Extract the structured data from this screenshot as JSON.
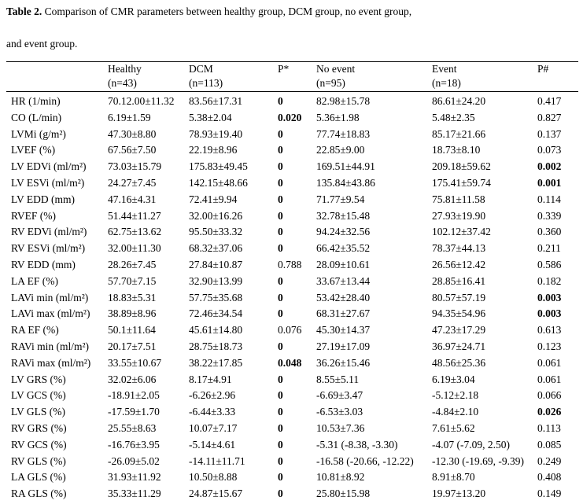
{
  "header": {
    "label": "Table 2.",
    "lines": [
      "Comparison of CMR parameters between healthy group, DCM group, no event group,",
      "and event group."
    ]
  },
  "table": {
    "columns": [
      {
        "name": "Healthy",
        "n": "(n=43)"
      },
      {
        "name": "DCM",
        "n": "(n=113)"
      },
      {
        "name": "P*"
      },
      {
        "name": "No event",
        "n": "(n=95)"
      },
      {
        "name": "Event",
        "n": "(n=18)"
      },
      {
        "name": "P#"
      }
    ],
    "rows": [
      {
        "cells": [
          "HR (1/min)",
          "70.12.00±11.32",
          "83.56±17.31",
          "0",
          "82.98±15.78",
          "86.61±24.20",
          "0.417"
        ],
        "bold": [
          3
        ]
      },
      {
        "cells": [
          "CO (L/min)",
          "6.19±1.59",
          "5.38±2.04",
          "0.020",
          "5.36±1.98",
          "5.48±2.35",
          "0.827"
        ],
        "bold": [
          3
        ]
      },
      {
        "cells": [
          "LVMi (g/m²)",
          "47.30±8.80",
          "78.93±19.40",
          "0",
          "77.74±18.83",
          "85.17±21.66",
          "0.137"
        ],
        "bold": [
          3
        ]
      },
      {
        "cells": [
          "LVEF (%)",
          "67.56±7.50",
          "22.19±8.96",
          "0",
          "22.85±9.00",
          "18.73±8.10",
          "0.073"
        ],
        "bold": [
          3
        ]
      },
      {
        "cells": [
          "LV EDVi (ml/m²)",
          "73.03±15.79",
          "175.83±49.45",
          "0",
          "169.51±44.91",
          "209.18±59.62",
          "0.002"
        ],
        "bold": [
          3,
          6
        ]
      },
      {
        "cells": [
          "LV ESVi (ml/m²)",
          "24.27±7.45",
          "142.15±48.66",
          "0",
          "135.84±43.86",
          "175.41±59.74",
          "0.001"
        ],
        "bold": [
          3,
          6
        ]
      },
      {
        "cells": [
          "LV EDD (mm)",
          "47.16±4.31",
          "72.41±9.94",
          "0",
          "71.77±9.54",
          "75.81±11.58",
          "0.114"
        ],
        "bold": [
          3
        ]
      },
      {
        "cells": [
          "RVEF (%)",
          "51.44±11.27",
          "32.00±16.26",
          "0",
          "32.78±15.48",
          "27.93±19.90",
          "0.339"
        ],
        "bold": [
          3
        ]
      },
      {
        "cells": [
          "RV EDVi (ml/m²)",
          "62.75±13.62",
          "95.50±33.32",
          "0",
          "94.24±32.56",
          "102.12±37.42",
          "0.360"
        ],
        "bold": [
          3
        ]
      },
      {
        "cells": [
          "RV ESVi (ml/m²)",
          "32.00±11.30",
          "68.32±37.06",
          "0",
          "66.42±35.52",
          "78.37±44.13",
          "0.211"
        ],
        "bold": [
          3
        ]
      },
      {
        "cells": [
          "RV EDD (mm)",
          "28.26±7.45",
          "27.84±10.87",
          "0.788",
          "28.09±10.61",
          "26.56±12.42",
          "0.586"
        ],
        "bold": []
      },
      {
        "cells": [
          "LA EF (%)",
          "57.70±7.15",
          "32.90±13.99",
          "0",
          "33.67±13.44",
          "28.85±16.41",
          "0.182"
        ],
        "bold": [
          3
        ]
      },
      {
        "cells": [
          "LAVi min (ml/m²)",
          "18.83±5.31",
          "57.75±35.68",
          "0",
          "53.42±28.40",
          "80.57±57.19",
          "0.003"
        ],
        "bold": [
          3,
          6
        ]
      },
      {
        "cells": [
          "LAVi max (ml/m²)",
          "38.89±8.96",
          "72.46±34.54",
          "0",
          "68.31±27.67",
          "94.35±54.96",
          "0.003"
        ],
        "bold": [
          3,
          6
        ]
      },
      {
        "cells": [
          "RA EF (%)",
          "50.1±11.64",
          "45.61±14.80",
          "0.076",
          "45.30±14.37",
          "47.23±17.29",
          "0.613"
        ],
        "bold": []
      },
      {
        "cells": [
          "RAVi min (ml/m²)",
          "20.17±7.51",
          "28.75±18.73",
          "0",
          "27.19±17.09",
          "36.97±24.71",
          "0.123"
        ],
        "bold": [
          3
        ]
      },
      {
        "cells": [
          "RAVi max (ml/m²)",
          "33.55±10.67",
          "38.22±17.85",
          "0.048",
          "36.26±15.46",
          "48.56±25.36",
          "0.061"
        ],
        "bold": [
          3
        ]
      },
      {
        "cells": [
          "LV GRS (%)",
          "32.02±6.06",
          "8.17±4.91",
          "0",
          "8.55±5.11",
          "6.19±3.04",
          "0.061"
        ],
        "bold": [
          3
        ]
      },
      {
        "cells": [
          "LV GCS (%)",
          "-18.91±2.05",
          "-6.26±2.96",
          "0",
          "-6.69±3.47",
          "-5.12±2.18",
          "0.066"
        ],
        "bold": [
          3
        ]
      },
      {
        "cells": [
          "LV GLS (%)",
          "-17.59±1.70",
          "-6.44±3.33",
          "0",
          "-6.53±3.03",
          "-4.84±2.10",
          "0.026"
        ],
        "bold": [
          3,
          6
        ]
      },
      {
        "cells": [
          "RV GRS (%)",
          "25.55±8.63",
          "10.07±7.17",
          "0",
          "10.53±7.36",
          "7.61±5.62",
          "0.113"
        ],
        "bold": [
          3
        ]
      },
      {
        "cells": [
          "RV GCS (%)",
          "-16.76±3.95",
          "-5.14±4.61",
          "0",
          "-5.31 (-8.38, -3.30)",
          "-4.07 (-7.09, 2.50)",
          "0.085"
        ],
        "bold": [
          3
        ]
      },
      {
        "cells": [
          "RV GLS (%)",
          "-26.09±5.02",
          "-14.11±11.71",
          "0",
          "-16.58 (-20.66, -12.22)",
          "-12.30 (-19.69, -9.39)",
          "0.249"
        ],
        "bold": [
          3
        ]
      },
      {
        "cells": [
          "LA GLS (%)",
          "31.93±11.92",
          "10.50±8.88",
          "0",
          "10.81±8.92",
          "8.91±8.70",
          "0.408"
        ],
        "bold": [
          3
        ]
      },
      {
        "cells": [
          "RA GLS (%)",
          "35.33±11.29",
          "24.87±15.67",
          "0",
          "25.80±15.98",
          "19.97±13.20",
          "0.149"
        ],
        "bold": [
          3
        ]
      }
    ]
  }
}
